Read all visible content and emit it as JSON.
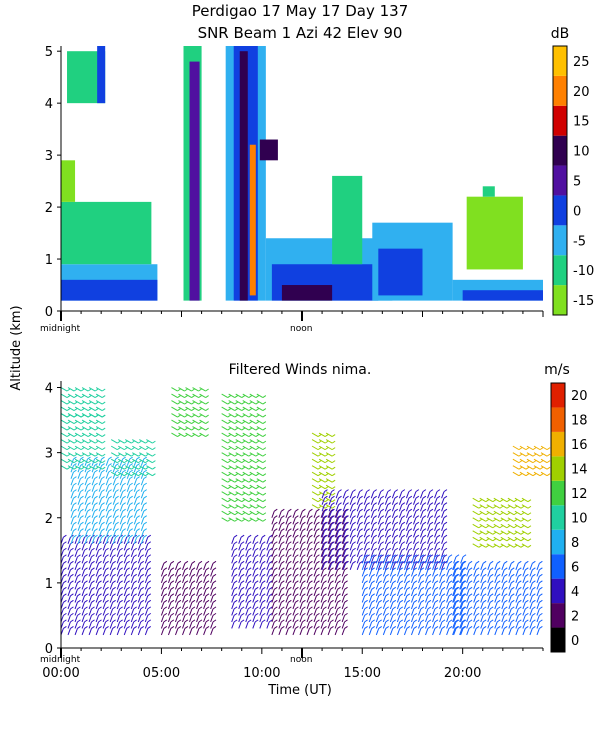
{
  "title_line1": "Perdigao  17 May 17 Day 137",
  "title_line2": "SNR Beam 1 Azi  42 Elev 90",
  "ylabel": "Altitude (km)",
  "xlabel": "Time (UT)",
  "markers": {
    "midnight": "midnight",
    "noon": "noon"
  },
  "chart_data": [
    {
      "type": "heatmap",
      "title": "SNR Beam 1 Azi  42 Elev 90",
      "ylabel": "Altitude (km)",
      "x_unit": "hours UT",
      "xlim": [
        0,
        24
      ],
      "ylim": [
        0,
        5.1
      ],
      "yticks": [
        "0",
        "1",
        "2",
        "3",
        "4",
        "5"
      ],
      "colorbar": {
        "unit": "dB",
        "ticks": [
          "25",
          "20",
          "15",
          "10",
          "5",
          "0",
          "-5",
          "-10",
          "-15"
        ],
        "levels": [
          -15,
          -10,
          -5,
          0,
          5,
          10,
          15,
          20,
          25,
          30
        ],
        "colors": [
          "#80e020",
          "#20d080",
          "#30b0f0",
          "#1040e0",
          "#5010a0",
          "#300050",
          "#d00000",
          "#ff8000",
          "#ffc000"
        ]
      },
      "regions": [
        {
          "x": [
            0.0,
            4.8
          ],
          "y": [
            0.2,
            0.9
          ],
          "db": -5
        },
        {
          "x": [
            0.0,
            4.8
          ],
          "y": [
            0.2,
            0.6
          ],
          "db": 0
        },
        {
          "x": [
            0.0,
            4.5
          ],
          "y": [
            0.9,
            2.1
          ],
          "db": -10
        },
        {
          "x": [
            0.0,
            0.7
          ],
          "y": [
            2.1,
            2.9
          ],
          "db": -12
        },
        {
          "x": [
            0.3,
            2.2
          ],
          "y": [
            4.0,
            5.0
          ],
          "db": -10
        },
        {
          "x": [
            1.8,
            2.2
          ],
          "y": [
            4.0,
            5.1
          ],
          "db": 0
        },
        {
          "x": [
            6.1,
            7.0
          ],
          "y": [
            0.2,
            5.1
          ],
          "db": -10
        },
        {
          "x": [
            6.4,
            6.9
          ],
          "y": [
            0.2,
            4.8
          ],
          "db": 5
        },
        {
          "x": [
            8.2,
            10.2
          ],
          "y": [
            0.2,
            5.1
          ],
          "db": -5
        },
        {
          "x": [
            8.6,
            9.8
          ],
          "y": [
            0.2,
            5.1
          ],
          "db": 0
        },
        {
          "x": [
            8.9,
            9.3
          ],
          "y": [
            0.2,
            5.0
          ],
          "db": 10
        },
        {
          "x": [
            9.4,
            9.7
          ],
          "y": [
            0.3,
            3.2
          ],
          "db": 20
        },
        {
          "x": [
            9.9,
            10.8
          ],
          "y": [
            2.9,
            3.3
          ],
          "db": 10
        },
        {
          "x": [
            10.2,
            16.5
          ],
          "y": [
            0.2,
            1.4
          ],
          "db": -5
        },
        {
          "x": [
            10.5,
            15.8
          ],
          "y": [
            0.2,
            0.9
          ],
          "db": 0
        },
        {
          "x": [
            11.0,
            13.5
          ],
          "y": [
            0.2,
            0.5
          ],
          "db": 10
        },
        {
          "x": [
            13.5,
            15.0
          ],
          "y": [
            0.9,
            2.6
          ],
          "db": -10
        },
        {
          "x": [
            15.5,
            19.5
          ],
          "y": [
            0.2,
            1.7
          ],
          "db": -5
        },
        {
          "x": [
            15.8,
            18.0
          ],
          "y": [
            0.3,
            1.2
          ],
          "db": 0
        },
        {
          "x": [
            19.5,
            24.0
          ],
          "y": [
            0.2,
            0.6
          ],
          "db": -5
        },
        {
          "x": [
            20.0,
            24.0
          ],
          "y": [
            0.2,
            0.4
          ],
          "db": 0
        },
        {
          "x": [
            20.2,
            23.0
          ],
          "y": [
            0.8,
            2.2
          ],
          "db": -12
        },
        {
          "x": [
            21.0,
            21.6
          ],
          "y": [
            2.2,
            2.4
          ],
          "db": -10
        }
      ]
    },
    {
      "type": "scatter",
      "subtype": "wind barbs",
      "title": "Filtered Winds nima.",
      "xlabel": "Time (UT)",
      "ylabel": "Altitude (km)",
      "xlim": [
        0,
        24
      ],
      "ylim": [
        0,
        4.1
      ],
      "xticks": [
        "00:00",
        "05:00",
        "10:00",
        "15:00",
        "20:00"
      ],
      "yticks": [
        "0",
        "1",
        "2",
        "3",
        "4"
      ],
      "colorbar": {
        "unit": "m/s",
        "ticks": [
          "20",
          "18",
          "16",
          "14",
          "12",
          "10",
          "8",
          "6",
          "4",
          "2",
          "0"
        ],
        "levels": [
          0,
          2,
          4,
          6,
          8,
          10,
          12,
          14,
          16,
          18,
          20,
          22
        ],
        "colors": [
          "#000000",
          "#500060",
          "#3010c0",
          "#1060ff",
          "#20b0f0",
          "#20d0a0",
          "#40d040",
          "#a0d000",
          "#f0b000",
          "#f06000",
          "#e02000"
        ]
      },
      "groups": [
        {
          "x": [
            0.0,
            4.5
          ],
          "y": [
            0.2,
            1.6
          ],
          "speed": 4
        },
        {
          "x": [
            0.5,
            4.0
          ],
          "y": [
            1.6,
            2.8
          ],
          "speed": 8
        },
        {
          "x": [
            0.0,
            2.0
          ],
          "y": [
            2.8,
            3.6
          ],
          "speed": 10
        },
        {
          "x": [
            0.0,
            2.0
          ],
          "y": [
            3.6,
            4.0
          ],
          "speed": 11
        },
        {
          "x": [
            2.5,
            4.5
          ],
          "y": [
            2.7,
            3.2
          ],
          "speed": 10
        },
        {
          "x": [
            5.0,
            7.5
          ],
          "y": [
            0.2,
            1.2
          ],
          "speed": 3
        },
        {
          "x": [
            5.5,
            7.2
          ],
          "y": [
            3.3,
            4.0
          ],
          "speed": 13
        },
        {
          "x": [
            8.0,
            10.0
          ],
          "y": [
            2.0,
            3.9
          ],
          "speed": 12
        },
        {
          "x": [
            8.5,
            10.5
          ],
          "y": [
            0.3,
            1.6
          ],
          "speed": 4
        },
        {
          "x": [
            10.5,
            14.0
          ],
          "y": [
            0.2,
            2.0
          ],
          "speed": 3
        },
        {
          "x": [
            12.5,
            13.5
          ],
          "y": [
            2.2,
            3.3
          ],
          "speed": 14
        },
        {
          "x": [
            13.0,
            19.0
          ],
          "y": [
            1.2,
            2.3
          ],
          "speed": 4
        },
        {
          "x": [
            15.0,
            20.0
          ],
          "y": [
            0.2,
            1.3
          ],
          "speed": 6
        },
        {
          "x": [
            19.5,
            24.0
          ],
          "y": [
            0.2,
            1.2
          ],
          "speed": 7
        },
        {
          "x": [
            20.5,
            23.0
          ],
          "y": [
            1.6,
            2.3
          ],
          "speed": 14
        },
        {
          "x": [
            22.5,
            24.0
          ],
          "y": [
            2.7,
            3.1
          ],
          "speed": 16
        }
      ]
    }
  ]
}
